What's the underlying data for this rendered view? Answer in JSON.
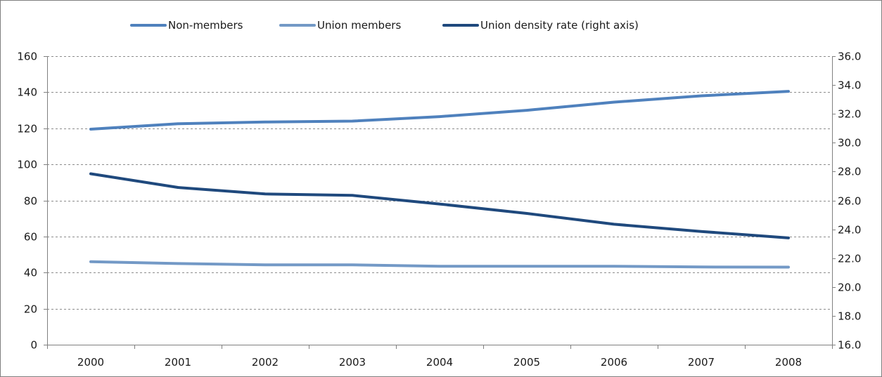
{
  "chart_data": {
    "type": "line",
    "title": "",
    "x": [
      "2000",
      "2001",
      "2002",
      "2003",
      "2004",
      "2005",
      "2006",
      "2007",
      "2008"
    ],
    "left_axis": {
      "ylim": [
        0,
        160
      ],
      "ticks": [
        "0",
        "20",
        "40",
        "60",
        "80",
        "100",
        "120",
        "140",
        "160"
      ],
      "tick_values": [
        0,
        20,
        40,
        60,
        80,
        100,
        120,
        140,
        160
      ]
    },
    "right_axis": {
      "ylim": [
        16.0,
        36.0
      ],
      "ticks": [
        "16.0",
        "18.0",
        "20.0",
        "22.0",
        "24.0",
        "26.0",
        "28.0",
        "30.0",
        "32.0",
        "34.0",
        "36.0"
      ],
      "tick_values": [
        16,
        18,
        20,
        22,
        24,
        26,
        28,
        30,
        32,
        34,
        36
      ]
    },
    "series": [
      {
        "name": "Non-members",
        "axis": "left",
        "color": "#4f81bd",
        "values": [
          119.5,
          122.5,
          123.5,
          124,
          126.5,
          130,
          134.5,
          138,
          140.5
        ]
      },
      {
        "name": "Union members",
        "axis": "left",
        "color": "#7399c6",
        "values": [
          46,
          45,
          44.3,
          44.3,
          43.5,
          43.5,
          43.5,
          43.1,
          43
        ]
      },
      {
        "name": "Union density rate (right axis)",
        "axis": "right",
        "color": "#1f497d",
        "values": [
          27.85,
          26.9,
          26.45,
          26.35,
          25.75,
          25.1,
          24.35,
          23.85,
          23.4
        ]
      }
    ],
    "grid": "horizontal dashed",
    "legend_position": "top"
  }
}
